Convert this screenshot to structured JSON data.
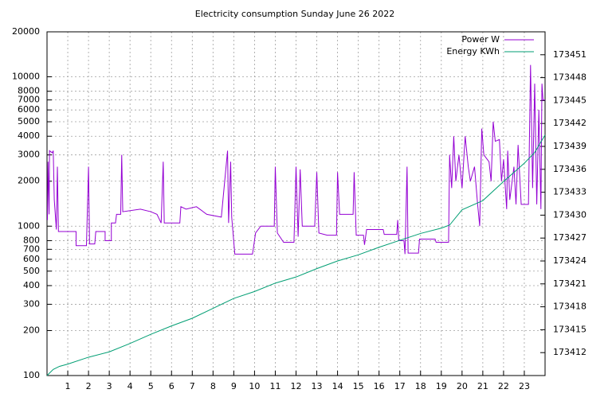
{
  "chart_data": {
    "type": "line",
    "title": "Electricity consumption Sunday June 26 2022",
    "xlim": [
      0,
      24
    ],
    "xticks": [
      1,
      2,
      3,
      4,
      5,
      6,
      7,
      8,
      9,
      10,
      11,
      12,
      13,
      14,
      15,
      16,
      17,
      18,
      19,
      20,
      21,
      22,
      23
    ],
    "ylim": [
      100,
      20000
    ],
    "log_y": true,
    "yticks": [
      100,
      200,
      300,
      400,
      500,
      600,
      700,
      800,
      1000,
      2000,
      3000,
      4000,
      5000,
      6000,
      7000,
      8000,
      10000,
      20000
    ],
    "y2lim": [
      173409,
      173454
    ],
    "y2ticks": [
      173412,
      173415,
      173418,
      173421,
      173424,
      173427,
      173430,
      173433,
      173436,
      173439,
      173442,
      173445,
      173448,
      173451
    ],
    "grid": true,
    "legend": "top-right",
    "series": [
      {
        "name": "Power W",
        "color": "#9400d3",
        "x": [
          0.02,
          0.05,
          0.1,
          0.12,
          0.25,
          0.3,
          0.35,
          0.45,
          0.5,
          0.55,
          1.4,
          1.4,
          1.9,
          2.0,
          2.05,
          2.3,
          2.35,
          2.8,
          2.8,
          3.1,
          3.1,
          3.3,
          3.35,
          3.55,
          3.6,
          3.65,
          4.5,
          5.0,
          5.3,
          5.5,
          5.6,
          5.65,
          6.4,
          6.45,
          6.7,
          7.2,
          7.7,
          8.4,
          8.7,
          8.75,
          8.85,
          8.9,
          9.05,
          9.9,
          9.95,
          10.05,
          10.3,
          10.95,
          11.0,
          11.1,
          11.4,
          11.9,
          12.0,
          12.1,
          12.2,
          12.3,
          12.9,
          13.0,
          13.1,
          13.5,
          13.95,
          14.0,
          14.1,
          14.75,
          14.8,
          14.9,
          15.25,
          15.3,
          15.4,
          16.2,
          16.25,
          16.85,
          16.9,
          16.95,
          17.2,
          17.25,
          17.35,
          17.4,
          17.9,
          17.95,
          18.7,
          18.75,
          19.35,
          19.4,
          19.5,
          19.6,
          19.7,
          19.85,
          20.0,
          20.15,
          20.3,
          20.4,
          20.6,
          20.75,
          20.85,
          20.95,
          21.05,
          21.3,
          21.4,
          21.5,
          21.6,
          21.8,
          21.9,
          22.0,
          22.15,
          22.2,
          22.3,
          22.5,
          22.6,
          22.7,
          22.85,
          23.2,
          23.3,
          23.4,
          23.5,
          23.6,
          23.7,
          23.8,
          23.85,
          23.9,
          24
        ],
        "values": [
          1100,
          2700,
          1200,
          3200,
          3100,
          3200,
          1500,
          950,
          2500,
          920,
          920,
          740,
          740,
          2500,
          760,
          760,
          920,
          920,
          800,
          800,
          1050,
          1050,
          1200,
          1200,
          3000,
          1250,
          1300,
          1250,
          1200,
          1050,
          2700,
          1050,
          1050,
          1350,
          1300,
          1350,
          1200,
          1150,
          3200,
          1050,
          2700,
          1150,
          650,
          650,
          720,
          900,
          1000,
          1000,
          2500,
          900,
          780,
          780,
          2500,
          850,
          2400,
          1000,
          1000,
          2300,
          900,
          870,
          870,
          2300,
          1200,
          1200,
          2300,
          870,
          870,
          750,
          950,
          950,
          880,
          880,
          1100,
          800,
          800,
          650,
          2500,
          660,
          660,
          820,
          820,
          780,
          780,
          3000,
          1800,
          4000,
          2000,
          3000,
          1800,
          4000,
          2500,
          2000,
          2500,
          1400,
          1000,
          4500,
          3000,
          2700,
          2000,
          5000,
          3700,
          3800,
          2000,
          2800,
          1300,
          3200,
          1500,
          2500,
          1400,
          3500,
          1400,
          1400,
          12000,
          1800,
          9000,
          1400,
          6000,
          1300,
          9000,
          7000,
          7000
        ]
      },
      {
        "name": "Energy KWh",
        "color": "#009e73",
        "axis": "y2",
        "x": [
          0,
          0.3,
          0.6,
          1,
          2,
          3,
          4,
          5,
          6,
          7,
          8,
          9,
          10,
          11,
          12,
          13,
          14,
          15,
          16,
          17,
          18,
          19,
          19.4,
          20,
          21,
          22,
          23,
          23.5,
          24
        ],
        "values": [
          173409,
          173409.8,
          173410.2,
          173410.5,
          173411.4,
          173412.1,
          173413.2,
          173414.4,
          173415.5,
          173416.5,
          173417.8,
          173419.1,
          173420,
          173421.1,
          173421.9,
          173423,
          173424,
          173424.8,
          173425.8,
          173426.7,
          173427.6,
          173428.3,
          173428.7,
          173430.7,
          173431.9,
          173434.4,
          173436.8,
          173438.2,
          173440.5
        ]
      }
    ]
  }
}
